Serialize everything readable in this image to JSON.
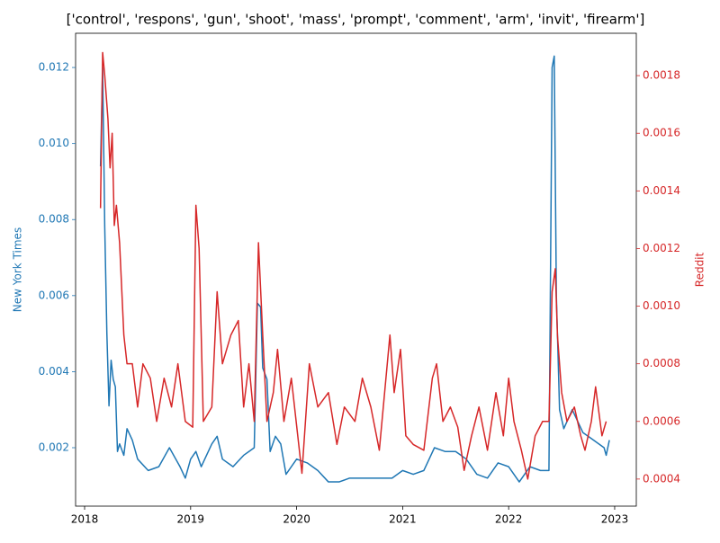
{
  "chart_data": {
    "type": "line",
    "title": "['control', 'respons', 'gun', 'shoot', 'mass', 'prompt', 'comment', 'arm', 'invit', 'firearm']",
    "ylabel": "New York Times",
    "y2label": "Reddit",
    "xlim": [
      2017.915,
      2023.204
    ],
    "xticks": [
      2018,
      2019,
      2020,
      2021,
      2022,
      2023
    ],
    "ylim": [
      0.000463,
      0.0129
    ],
    "yticks": [
      0.002,
      0.004,
      0.006,
      0.008,
      {
        "value": 0.01,
        "label": "0.010"
      },
      0.012
    ],
    "y2lim": [
      0.000306,
      0.001947
    ],
    "y2ticks": [
      0.0004,
      0.0006,
      0.0008,
      {
        "value": 0.001,
        "label": "0.0010"
      },
      0.0012,
      0.0014,
      0.0016,
      0.0018
    ],
    "series": [
      {
        "name": "New York Times",
        "color": "#1f77b4",
        "x": [
          2018.15,
          2018.17,
          2018.19,
          2018.21,
          2018.23,
          2018.25,
          2018.27,
          2018.29,
          2018.31,
          2018.33,
          2018.37,
          2018.4,
          2018.45,
          2018.5,
          2018.6,
          2018.7,
          2018.8,
          2018.9,
          2018.95,
          2019.0,
          2019.05,
          2019.1,
          2019.2,
          2019.25,
          2019.3,
          2019.4,
          2019.5,
          2019.55,
          2019.6,
          2019.63,
          2019.66,
          2019.68,
          2019.72,
          2019.75,
          2019.8,
          2019.85,
          2019.9,
          2020.0,
          2020.1,
          2020.2,
          2020.3,
          2020.4,
          2020.5,
          2020.7,
          2020.9,
          2021.0,
          2021.1,
          2021.2,
          2021.3,
          2021.4,
          2021.5,
          2021.6,
          2021.7,
          2021.8,
          2021.9,
          2022.0,
          2022.1,
          2022.2,
          2022.3,
          2022.38,
          2022.41,
          2022.43,
          2022.45,
          2022.48,
          2022.52,
          2022.6,
          2022.7,
          2022.8,
          2022.9,
          2022.92,
          2022.95
        ],
        "values": [
          0.0094,
          0.012,
          0.0078,
          0.005,
          0.0031,
          0.0043,
          0.0038,
          0.0036,
          0.0019,
          0.0021,
          0.0018,
          0.0025,
          0.0022,
          0.0017,
          0.0014,
          0.0015,
          0.002,
          0.0015,
          0.0012,
          0.0017,
          0.0019,
          0.0015,
          0.0021,
          0.0023,
          0.0017,
          0.0015,
          0.0018,
          0.0019,
          0.002,
          0.0058,
          0.0057,
          0.0041,
          0.0038,
          0.0019,
          0.0023,
          0.0021,
          0.0013,
          0.0017,
          0.0016,
          0.0014,
          0.0011,
          0.0011,
          0.0012,
          0.0012,
          0.0012,
          0.0014,
          0.0013,
          0.0014,
          0.002,
          0.0019,
          0.0019,
          0.0017,
          0.0013,
          0.0012,
          0.0016,
          0.0015,
          0.0011,
          0.0015,
          0.0014,
          0.0014,
          0.012,
          0.0123,
          0.006,
          0.003,
          0.0025,
          0.003,
          0.0024,
          0.0022,
          0.002,
          0.0018,
          0.0022
        ]
      },
      {
        "name": "Reddit",
        "color": "#d62728",
        "axis": "y2",
        "x": [
          2018.15,
          2018.17,
          2018.19,
          2018.22,
          2018.24,
          2018.26,
          2018.28,
          2018.3,
          2018.33,
          2018.37,
          2018.4,
          2018.45,
          2018.5,
          2018.55,
          2018.62,
          2018.68,
          2018.75,
          2018.82,
          2018.88,
          2018.95,
          2019.02,
          2019.05,
          2019.08,
          2019.12,
          2019.2,
          2019.25,
          2019.3,
          2019.38,
          2019.45,
          2019.5,
          2019.55,
          2019.6,
          2019.64,
          2019.68,
          2019.72,
          2019.78,
          2019.82,
          2019.88,
          2019.95,
          2020.05,
          2020.12,
          2020.2,
          2020.3,
          2020.38,
          2020.45,
          2020.55,
          2020.62,
          2020.7,
          2020.78,
          2020.88,
          2020.92,
          2020.98,
          2021.03,
          2021.1,
          2021.2,
          2021.28,
          2021.32,
          2021.38,
          2021.45,
          2021.52,
          2021.58,
          2021.65,
          2021.72,
          2021.8,
          2021.88,
          2021.95,
          2022.0,
          2022.05,
          2022.12,
          2022.18,
          2022.25,
          2022.32,
          2022.38,
          2022.41,
          2022.44,
          2022.46,
          2022.5,
          2022.55,
          2022.62,
          2022.68,
          2022.72,
          2022.78,
          2022.82,
          2022.88,
          2022.92
        ],
        "values": [
          0.00134,
          0.00188,
          0.0018,
          0.00165,
          0.00148,
          0.0016,
          0.00128,
          0.00135,
          0.00122,
          0.0009,
          0.0008,
          0.0008,
          0.00065,
          0.0008,
          0.00075,
          0.0006,
          0.00075,
          0.00065,
          0.0008,
          0.0006,
          0.00058,
          0.00135,
          0.0012,
          0.0006,
          0.00065,
          0.00105,
          0.0008,
          0.0009,
          0.00095,
          0.00065,
          0.0008,
          0.0006,
          0.00122,
          0.0009,
          0.0006,
          0.0007,
          0.00085,
          0.0006,
          0.00075,
          0.00042,
          0.0008,
          0.00065,
          0.0007,
          0.00052,
          0.00065,
          0.0006,
          0.00075,
          0.00065,
          0.0005,
          0.0009,
          0.0007,
          0.00085,
          0.00055,
          0.00052,
          0.0005,
          0.00075,
          0.0008,
          0.0006,
          0.00065,
          0.00058,
          0.00043,
          0.00055,
          0.00065,
          0.0005,
          0.0007,
          0.00055,
          0.00075,
          0.0006,
          0.0005,
          0.0004,
          0.00055,
          0.0006,
          0.0006,
          0.00105,
          0.00113,
          0.0009,
          0.0007,
          0.0006,
          0.00065,
          0.00055,
          0.0005,
          0.0006,
          0.00072,
          0.00055,
          0.0006
        ]
      }
    ]
  }
}
